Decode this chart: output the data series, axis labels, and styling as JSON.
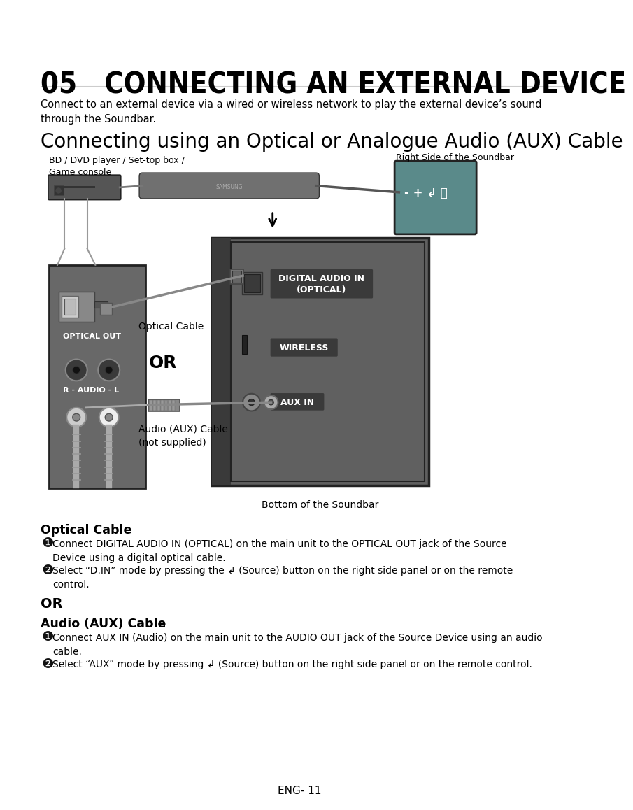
{
  "title": "05   CONNECTING AN EXTERNAL DEVICE",
  "subtitle": "Connecting using an Optical or Analogue Audio (AUX) Cable",
  "intro_text": "Connect to an external device via a wired or wireless network to play the external device’s sound\nthrough the Soundbar.",
  "label_bd": "BD / DVD player / Set-top box /\nGame console",
  "label_right_side": "Right Side of the Soundbar",
  "label_optical_out": "OPTICAL OUT",
  "label_optical_cable": "Optical Cable",
  "label_or": "OR",
  "label_audio_aux": "Audio (AUX) Cable\n(not supplied)",
  "label_bottom": "Bottom of the Soundbar",
  "label_r_audio_l": "R - AUDIO - L",
  "label_digital_audio": "DIGITAL AUDIO IN\n(OPTICAL)",
  "label_wireless": "WIRELESS",
  "label_aux_in": "AUX IN",
  "section_optical": "Optical Cable",
  "step1_optical": "Connect DIGITAL AUDIO IN (OPTICAL) on the main unit to the OPTICAL OUT jack of the Source\nDevice using a digital optical cable.",
  "step2_optical": "Select “D.IN” mode by pressing the ↲ (Source) button on the right side panel or on the remote\ncontrol.",
  "section_or": "OR",
  "section_aux": "Audio (AUX) Cable",
  "step1_aux": "Connect AUX IN (Audio) on the main unit to the AUDIO OUT jack of the Source Device using an audio\ncable.",
  "step2_aux": "Select “AUX” mode by pressing ↲ (Source) button on the right side panel or on the remote control.",
  "footer": "ENG- 11",
  "bg_color": "#ffffff",
  "src_panel_color": "#686868",
  "sb_panel_color": "#606060",
  "sb_panel_dark": "#484848",
  "sb_left_strip": "#3a3a3a",
  "button_panel_color": "#5a8a8a",
  "label_bg_dark": "#3a3a3a",
  "player_color": "#555555",
  "soundbar_color": "#707070",
  "cable_color": "#888888",
  "text_color": "#000000",
  "text_white": "#ffffff"
}
